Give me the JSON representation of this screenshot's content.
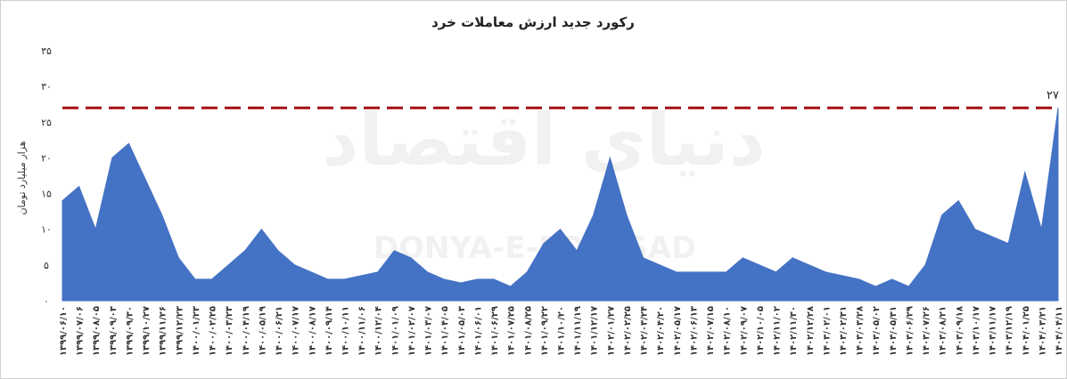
{
  "chart_data": {
    "type": "area",
    "title": "رکورد جدید ارزش معاملات خرد",
    "y_label": "هزار میلیارد تومان",
    "watermark": [
      "دنیای اقتصاد",
      "DONYA-E-EQTESAD"
    ],
    "categories": [
      "۱۳۹۹/۰۶/۱۰",
      "۱۳۹۹/۰۷/۰۶",
      "۱۳۹۹/۰۸/۰۵",
      "۱۳۹۹/۰۹/۰۳",
      "۱۳۹۹/۰۹/۳۰",
      "۱۳۹۹/۱۰/۲۷",
      "۱۳۹۹/۱۱/۲۶",
      "۱۳۹۹/۱۲/۲۳",
      "۱۴۰۰/۰۱/۲۳",
      "۱۴۰۰/۰۲/۲۵",
      "۱۴۰۰/۰۳/۲۳",
      "۱۴۰۰/۰۴/۱۹",
      "۱۴۰۰/۰۵/۱۹",
      "۱۴۰۰/۰۶/۲۱",
      "۱۴۰۰/۰۷/۱۷",
      "۱۴۰۰/۰۸/۱۷",
      "۱۴۰۰/۰۹/۱۴",
      "۱۴۰۰/۱۰/۱۱",
      "۱۴۰۰/۱۱/۰۶",
      "۱۴۰۰/۱۲/۰۴",
      "۱۴۰۱/۰۱/۰۹",
      "۱۴۰۱/۰۲/۰۷",
      "۱۴۰۱/۰۳/۰۷",
      "۱۴۰۱/۰۴/۰۵",
      "۱۴۰۱/۰۵/۰۳",
      "۱۴۰۱/۰۶/۰۱",
      "۱۴۰۱/۰۶/۲۹",
      "۱۴۰۱/۰۷/۲۵",
      "۱۴۰۱/۰۸/۲۵",
      "۱۴۰۱/۰۹/۲۲",
      "۱۴۰۱/۱۰/۲۰",
      "۱۴۰۱/۱۱/۱۹",
      "۱۴۰۱/۱۲/۱۷",
      "۱۴۰۲/۰۱/۲۷",
      "۱۴۰۲/۰۲/۲۵",
      "۱۴۰۲/۰۳/۲۴",
      "۱۴۰۲/۰۴/۲۰",
      "۱۴۰۲/۰۵/۱۷",
      "۱۴۰۲/۰۶/۱۳",
      "۱۴۰۲/۰۷/۱۵",
      "۱۴۰۲/۰۸/۱۰",
      "۱۴۰۲/۰۹/۰۷",
      "۱۴۰۲/۱۰/۰۵",
      "۱۴۰۲/۱۱/۰۲",
      "۱۴۰۲/۱۱/۳۰",
      "۱۴۰۲/۱۲/۲۸",
      "۱۴۰۳/۰۲/۰۱",
      "۱۴۰۳/۰۲/۳۱",
      "۱۴۰۳/۰۳/۲۸",
      "۱۴۰۳/۰۵/۰۲",
      "۱۴۰۳/۰۵/۳۱",
      "۱۴۰۳/۰۶/۲۹",
      "۱۴۰۳/۰۷/۲۶",
      "۱۴۰۳/۰۸/۲۱",
      "۱۴۰۳/۰۹/۱۸",
      "۱۴۰۳/۱۰/۱۷",
      "۱۴۰۳/۱۱/۱۷",
      "۱۴۰۳/۱۲/۱۹",
      "۱۴۰۴/۰۱/۲۵",
      "۱۴۰۴/۰۳/۲۱",
      "۱۴۰۴/۰۴/۱۱"
    ],
    "values": [
      14,
      16,
      10,
      20,
      22,
      17,
      12,
      6,
      3,
      3,
      5,
      7,
      10,
      7,
      5,
      4,
      3,
      3,
      3.5,
      4,
      7,
      6,
      4,
      3,
      2.5,
      3,
      3,
      2,
      4,
      8,
      10,
      7,
      12,
      20,
      12,
      6,
      5,
      4,
      4,
      4,
      4,
      6,
      5,
      4,
      6,
      5,
      4,
      3.5,
      3,
      2,
      3,
      2,
      5,
      12,
      14,
      10,
      9,
      8,
      18,
      10,
      27
    ],
    "color": "#4472c4",
    "ylim": [
      0,
      35
    ],
    "yticks": [
      {
        "value": 0,
        "label": "۰"
      },
      {
        "value": 5,
        "label": "۵"
      },
      {
        "value": 10,
        "label": "۱۰"
      },
      {
        "value": 15,
        "label": "۱۵"
      },
      {
        "value": 20,
        "label": "۲۰"
      },
      {
        "value": 25,
        "label": "۲۵"
      },
      {
        "value": 30,
        "label": "۳۰"
      },
      {
        "value": 35,
        "label": "۳۵"
      }
    ],
    "reference_line": {
      "value": 27,
      "label": "۲۷",
      "color": "#a50f15"
    }
  }
}
